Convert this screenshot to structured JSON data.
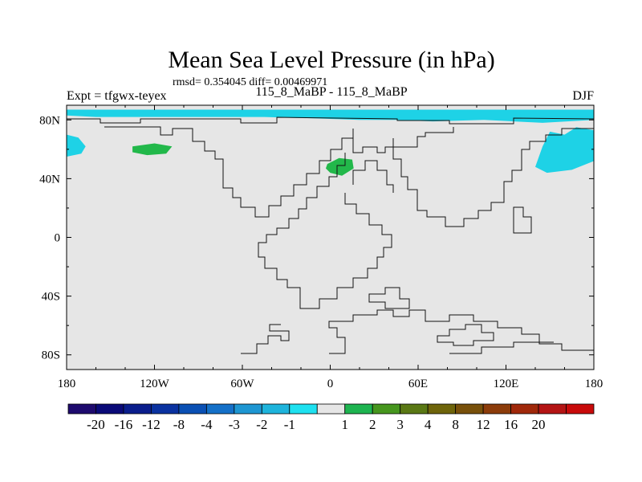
{
  "chart_data": {
    "type": "heatmap",
    "title": "Mean Sea Level Pressure (in hPa)",
    "stats_text": "rmsd= 0.354045 diff= 0.00469971",
    "left_label": "Expt = tfgwx-teyex",
    "center_label": "115_8_MaBP - 115_8_MaBP",
    "right_label": "DJF",
    "x_ticks": [
      "180",
      "120W",
      "60W",
      "0",
      "60E",
      "120E",
      "180"
    ],
    "x_tick_values": [
      -180,
      -120,
      -60,
      0,
      60,
      120,
      180
    ],
    "y_ticks": [
      "80N",
      "40N",
      "0",
      "40S",
      "80S"
    ],
    "y_tick_values": [
      80,
      40,
      0,
      -40,
      -80
    ],
    "xlim": [
      -180,
      180
    ],
    "ylim": [
      -90,
      90
    ],
    "background_value_color": "#e6e6e6",
    "regions": [
      {
        "name": "arctic-negative-band",
        "range": "-2 to -1",
        "color": "#1ed2e6",
        "points": [
          [
            -180,
            87
          ],
          [
            180,
            87
          ],
          [
            180,
            73
          ],
          [
            168,
            75
          ],
          [
            160,
            70
          ],
          [
            150,
            72
          ],
          [
            145,
            62
          ],
          [
            140,
            48
          ],
          [
            148,
            44
          ],
          [
            165,
            46
          ],
          [
            180,
            52
          ],
          [
            180,
            80
          ],
          [
            145,
            78
          ],
          [
            125,
            79
          ],
          [
            105,
            80
          ],
          [
            70,
            79
          ],
          [
            45,
            80
          ],
          [
            20,
            80
          ],
          [
            -10,
            81
          ],
          [
            -45,
            82
          ],
          [
            -80,
            82
          ],
          [
            -120,
            82
          ],
          [
            -160,
            82
          ],
          [
            -180,
            83
          ]
        ]
      },
      {
        "name": "pacific-negative-west",
        "range": "-2 to -1",
        "color": "#1ed2e6",
        "points": [
          [
            -180,
            70
          ],
          [
            -172,
            68
          ],
          [
            -167,
            62
          ],
          [
            -170,
            57
          ],
          [
            -180,
            55
          ]
        ]
      },
      {
        "name": "pacific-positive",
        "range": "1 to 2",
        "color": "#22b84a",
        "points": [
          [
            -135,
            62
          ],
          [
            -120,
            64
          ],
          [
            -108,
            62
          ],
          [
            -112,
            57
          ],
          [
            -125,
            56
          ],
          [
            -135,
            58
          ]
        ]
      },
      {
        "name": "europe-positive",
        "range": "1 to 2",
        "color": "#22b84a",
        "points": [
          [
            -2,
            50
          ],
          [
            6,
            54
          ],
          [
            15,
            53
          ],
          [
            16,
            47
          ],
          [
            8,
            42
          ],
          [
            0,
            44
          ],
          [
            -3,
            47
          ]
        ]
      }
    ],
    "colorbar": {
      "colors": [
        "#1e0a6e",
        "#0a0a78",
        "#0a1e8c",
        "#0a32a0",
        "#0a50b4",
        "#1470c8",
        "#1e96d2",
        "#1eb4dc",
        "#1ee1f0",
        "#e6e6e6",
        "#1eb450",
        "#46961e",
        "#5a7814",
        "#6e640a",
        "#78500a",
        "#8c3c0a",
        "#a0280a",
        "#b41414",
        "#c80a0a"
      ],
      "labels": [
        "-20",
        "-16",
        "-12",
        "-8",
        "-4",
        "-3",
        "-2",
        "-1",
        "1",
        "2",
        "3",
        "4",
        "8",
        "12",
        "16",
        "20"
      ],
      "label_boundaries": [
        1,
        2,
        3,
        4,
        5,
        6,
        7,
        8,
        10,
        11,
        12,
        13,
        14,
        15,
        16,
        17
      ]
    }
  }
}
